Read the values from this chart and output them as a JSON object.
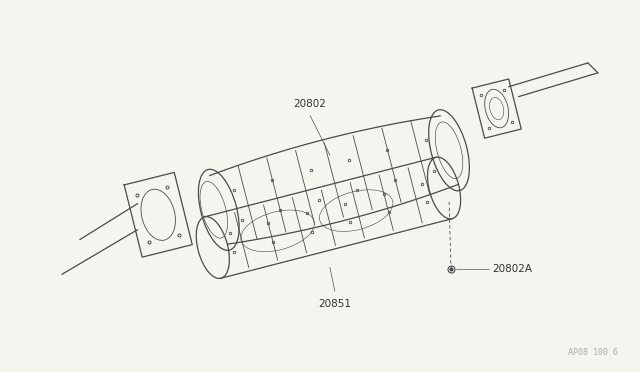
{
  "background_color": "#f5f5f0",
  "line_color": "#4a4a4a",
  "label_color": "#333333",
  "watermark_color": "#aaaaaa",
  "watermark_text": "AP08 100 6",
  "figsize": [
    6.4,
    3.72
  ],
  "dpi": 100,
  "border_color": "#cccccc"
}
